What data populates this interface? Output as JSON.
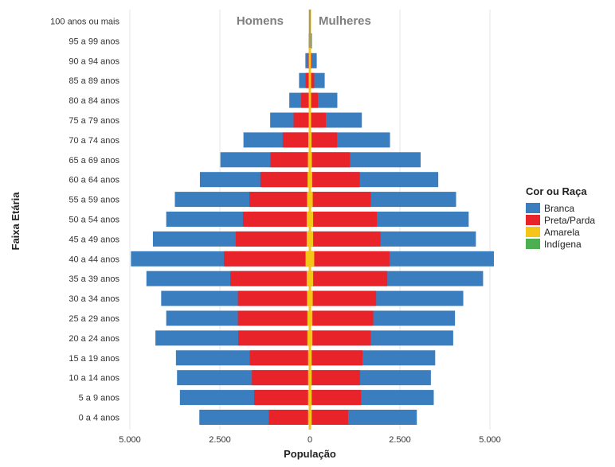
{
  "chart_data": {
    "type": "bar",
    "subtype": "population-pyramid",
    "xlabel": "População",
    "ylabel": "Faixa Etária",
    "side_labels": {
      "left": "Homens",
      "right": "Mulheres"
    },
    "x_ticks": [
      {
        "value": -5000,
        "label": "5.000"
      },
      {
        "value": -2500,
        "label": "2.500"
      },
      {
        "value": 0,
        "label": "0"
      },
      {
        "value": 2500,
        "label": "2.500"
      },
      {
        "value": 5000,
        "label": "5.000"
      }
    ],
    "xlim": [
      -5000,
      5000
    ],
    "grid": true,
    "legend": {
      "title": "Cor ou Raça",
      "placement": "right",
      "entries": [
        {
          "name": "Branca",
          "color": "#3a7ebf"
        },
        {
          "name": "Preta/Parda",
          "color": "#e8232a"
        },
        {
          "name": "Amarela",
          "color": "#f5c518"
        },
        {
          "name": "Indígena",
          "color": "#4caf50"
        }
      ]
    },
    "categories": [
      "0 a 4 anos",
      "5 a 9 anos",
      "10 a 14 anos",
      "15 a 19 anos",
      "20 a 24 anos",
      "25 a 29 anos",
      "30 a 34 anos",
      "35 a 39 anos",
      "40 a 44 anos",
      "45 a 49 anos",
      "50 a 54 anos",
      "55 a 59 anos",
      "60 a 64 anos",
      "65 a 69 anos",
      "70 a 74 anos",
      "75 a 79 anos",
      "80 a 84 anos",
      "85 a 89 anos",
      "90 a 94 anos",
      "95 a 99 anos",
      "100 anos ou mais"
    ],
    "series": {
      "Homens": {
        "Branca": [
          1930,
          2060,
          2080,
          2050,
          2300,
          1990,
          2130,
          2330,
          2580,
          2300,
          2130,
          2070,
          1680,
          1390,
          1090,
          650,
          330,
          180,
          70,
          20,
          5
        ],
        "Preta/Parda": [
          1090,
          1500,
          1560,
          1620,
          1920,
          1930,
          1920,
          2120,
          2270,
          1970,
          1770,
          1600,
          1310,
          1040,
          710,
          420,
          220,
          110,
          50,
          15,
          3
        ],
        "Amarela": [
          40,
          40,
          40,
          40,
          60,
          60,
          70,
          80,
          110,
          80,
          80,
          70,
          60,
          50,
          40,
          30,
          20,
          10,
          5,
          2,
          1
        ],
        "Indígena": [
          10,
          10,
          10,
          10,
          10,
          10,
          10,
          10,
          10,
          10,
          10,
          10,
          5,
          5,
          5,
          3,
          2,
          1,
          0,
          0,
          0
        ]
      },
      "Mulheres": {
        "Branca": [
          1910,
          2020,
          1970,
          2020,
          2290,
          2270,
          2420,
          2660,
          2900,
          2650,
          2550,
          2370,
          2180,
          1960,
          1470,
          1000,
          540,
          290,
          140,
          40,
          10
        ],
        "Preta/Parda": [
          1010,
          1370,
          1340,
          1410,
          1620,
          1690,
          1760,
          2060,
          2090,
          1870,
          1770,
          1610,
          1320,
          1060,
          710,
          410,
          200,
          110,
          45,
          15,
          3
        ],
        "Amarela": [
          40,
          40,
          40,
          40,
          60,
          60,
          70,
          80,
          110,
          80,
          80,
          70,
          60,
          50,
          40,
          30,
          20,
          10,
          5,
          2,
          1
        ],
        "Indígena": [
          10,
          10,
          10,
          10,
          10,
          10,
          10,
          10,
          10,
          10,
          10,
          10,
          5,
          5,
          5,
          3,
          2,
          1,
          0,
          0,
          0
        ]
      }
    }
  }
}
